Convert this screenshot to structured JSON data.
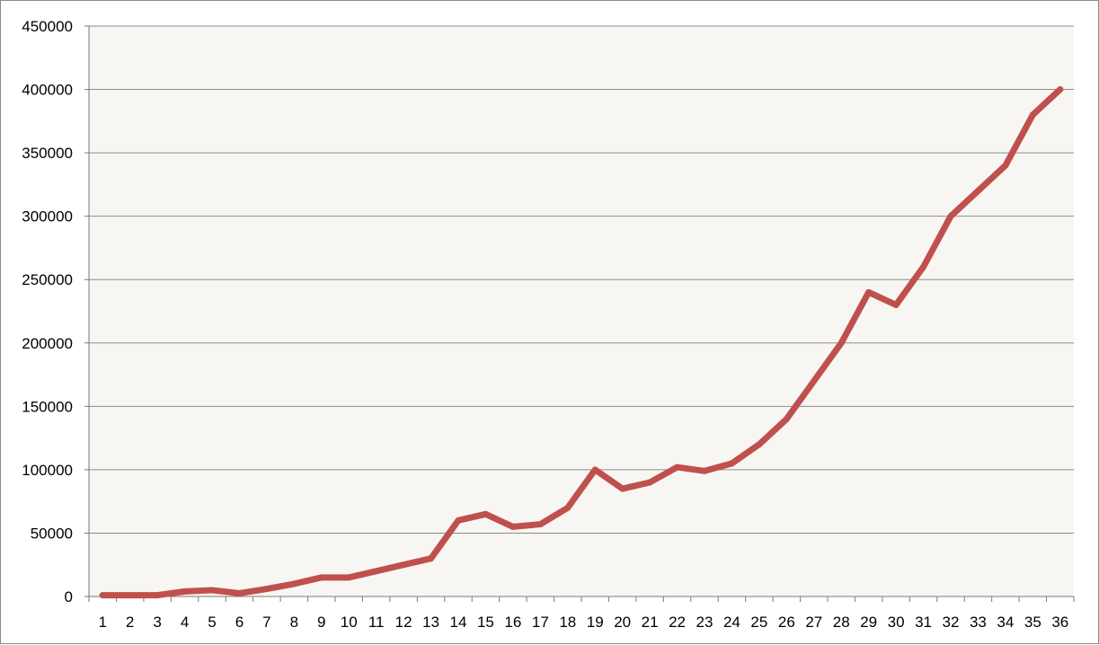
{
  "chart_data": {
    "type": "line",
    "title": "",
    "xlabel": "",
    "ylabel": "",
    "categories": [
      "1",
      "2",
      "3",
      "4",
      "5",
      "6",
      "7",
      "8",
      "9",
      "10",
      "11",
      "12",
      "13",
      "14",
      "15",
      "16",
      "17",
      "18",
      "19",
      "20",
      "21",
      "22",
      "23",
      "24",
      "25",
      "26",
      "27",
      "28",
      "29",
      "30",
      "31",
      "32",
      "33",
      "34",
      "35",
      "36"
    ],
    "series": [
      {
        "values": [
          1000,
          1000,
          1000,
          4000,
          5000,
          2500,
          6000,
          10000,
          15000,
          15000,
          20000,
          25000,
          30000,
          60000,
          65000,
          55000,
          57000,
          70000,
          100000,
          85000,
          90000,
          102000,
          99000,
          105000,
          120000,
          140000,
          170000,
          200000,
          240000,
          230000,
          260000,
          300000,
          320000,
          340000,
          380000,
          400000
        ],
        "color": "#c0504d"
      }
    ],
    "ylim": [
      0,
      450000
    ],
    "yticks": [
      "0",
      "50000",
      "100000",
      "150000",
      "200000",
      "250000",
      "300000",
      "350000",
      "400000",
      "450000"
    ],
    "grid": true,
    "legend": "none",
    "plot_background": "#f8f6f2"
  }
}
